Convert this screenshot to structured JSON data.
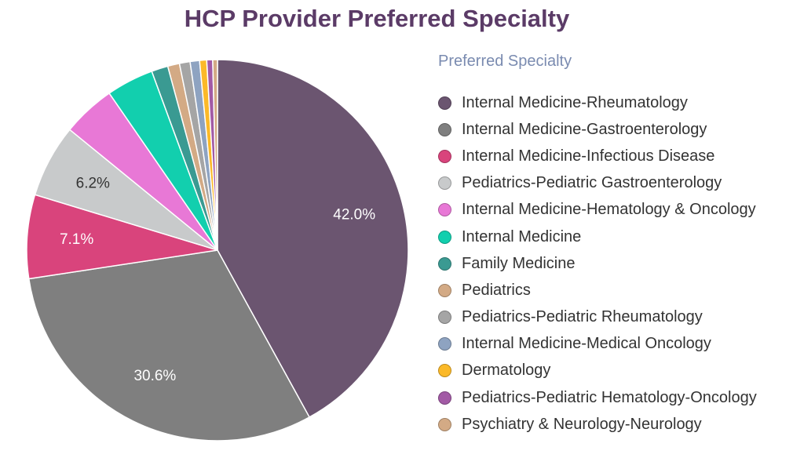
{
  "chart_data": {
    "type": "pie",
    "title": "HCP Provider Preferred Specialty",
    "legend_title": "Preferred Specialty",
    "legend_position": "right",
    "slices": [
      {
        "label": "Internal Medicine-Rheumatology",
        "value": 42.0,
        "color": "#6b5570",
        "data_label": "42.0%",
        "label_color": "#ffffff"
      },
      {
        "label": "Internal Medicine-Gastroenterology",
        "value": 30.6,
        "color": "#7f7f7f",
        "data_label": "30.6%",
        "label_color": "#ffffff"
      },
      {
        "label": "Internal Medicine-Infectious Disease",
        "value": 7.1,
        "color": "#d9447c",
        "data_label": "7.1%",
        "label_color": "#ffffff"
      },
      {
        "label": "Pediatrics-Pediatric Gastroenterology",
        "value": 6.2,
        "color": "#c8cacb",
        "data_label": "6.2%",
        "label_color": "#333333"
      },
      {
        "label": "Internal Medicine-Hematology & Oncology",
        "value": 4.5,
        "color": "#e878d6",
        "data_label": "",
        "label_color": "#333333"
      },
      {
        "label": "Internal Medicine",
        "value": 4.0,
        "color": "#12cfae",
        "data_label": "",
        "label_color": "#333333"
      },
      {
        "label": "Family Medicine",
        "value": 1.4,
        "color": "#3a9a92",
        "data_label": "",
        "label_color": "#333333"
      },
      {
        "label": "Pediatrics",
        "value": 1.0,
        "color": "#d3aa85",
        "data_label": "",
        "label_color": "#333333"
      },
      {
        "label": "Pediatrics-Pediatric Rheumatology",
        "value": 0.9,
        "color": "#a5a5a5",
        "data_label": "",
        "label_color": "#333333"
      },
      {
        "label": "Internal Medicine-Medical Oncology",
        "value": 0.8,
        "color": "#8ea3c1",
        "data_label": "",
        "label_color": "#333333"
      },
      {
        "label": "Dermatology",
        "value": 0.6,
        "color": "#fbb928",
        "data_label": "",
        "label_color": "#333333"
      },
      {
        "label": "Pediatrics-Pediatric Hematology-Oncology",
        "value": 0.5,
        "color": "#a25aa5",
        "data_label": "",
        "label_color": "#333333"
      },
      {
        "label": "Psychiatry & Neurology-Neurology",
        "value": 0.4,
        "color": "#d3aa85",
        "data_label": "",
        "label_color": "#333333"
      }
    ]
  }
}
